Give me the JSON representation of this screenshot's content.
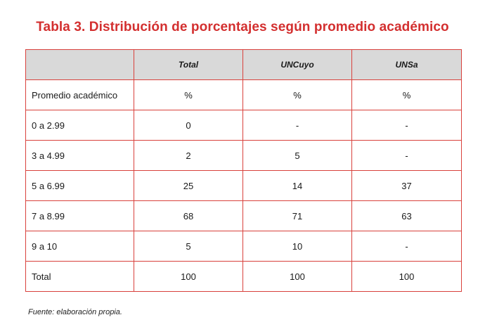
{
  "title": "Tabla 3. Distribución de porcentajes según promedio académico",
  "table": {
    "headers": [
      "",
      "Total",
      "UNCuyo",
      "UNSa"
    ],
    "rows": [
      [
        "Promedio académico",
        "%",
        "%",
        "%"
      ],
      [
        "0 a 2.99",
        "0",
        "-",
        "-"
      ],
      [
        "3 a 4.99",
        "2",
        "5",
        "-"
      ],
      [
        "5 a 6.99",
        "25",
        "14",
        "37"
      ],
      [
        "7 a 8.99",
        "68",
        "71",
        "63"
      ],
      [
        "9 a 10",
        "5",
        "10",
        "-"
      ],
      [
        "Total",
        "100",
        "100",
        "100"
      ]
    ]
  },
  "source": "Fuente: elaboración propia.",
  "colors": {
    "title": "#d32f2f",
    "border": "#d9413c",
    "header_bg": "#d9d9d9"
  }
}
